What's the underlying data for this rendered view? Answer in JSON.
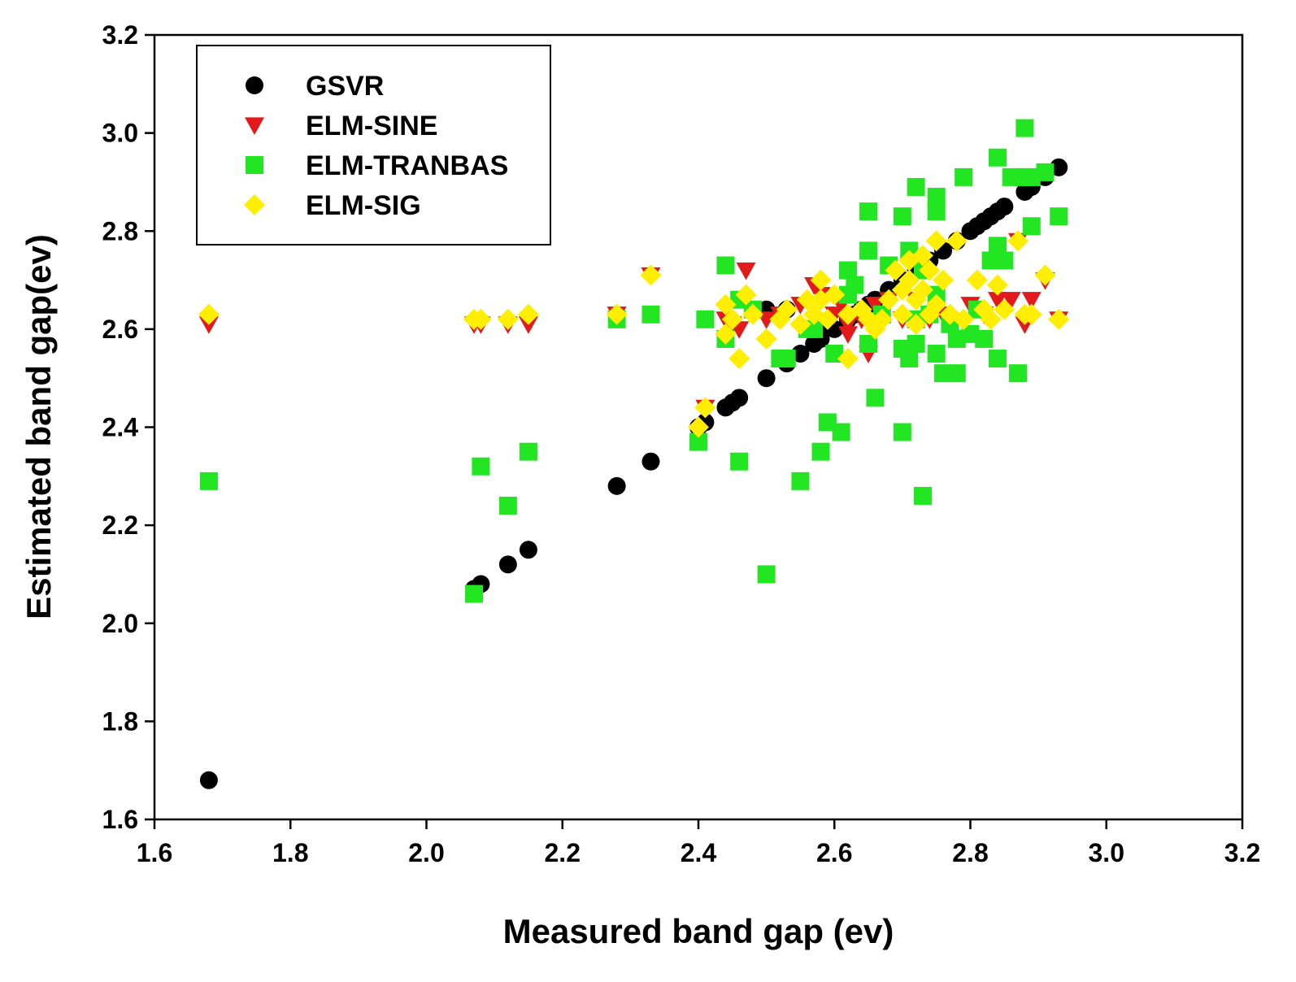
{
  "chart_data": {
    "type": "scatter",
    "title": "",
    "xlabel": "Measured band gap (ev)",
    "ylabel": "Estimated band gap(ev)",
    "xlim": [
      1.6,
      3.2
    ],
    "ylim": [
      1.6,
      3.2
    ],
    "xticks": [
      "1.6",
      "1.8",
      "2.0",
      "2.2",
      "2.4",
      "2.6",
      "2.8",
      "3.0",
      "3.2"
    ],
    "yticks": [
      "1.6",
      "1.8",
      "2.0",
      "2.2",
      "2.4",
      "2.6",
      "2.8",
      "3.0",
      "3.2"
    ],
    "legend_position": "top-left",
    "grid": false,
    "series": [
      {
        "name": "GSVR",
        "marker": "circle",
        "color": "#000000",
        "points": [
          [
            1.68,
            1.68
          ],
          [
            2.07,
            2.07
          ],
          [
            2.08,
            2.08
          ],
          [
            2.12,
            2.12
          ],
          [
            2.15,
            2.15
          ],
          [
            2.28,
            2.28
          ],
          [
            2.33,
            2.33
          ],
          [
            2.4,
            2.4
          ],
          [
            2.41,
            2.41
          ],
          [
            2.44,
            2.44
          ],
          [
            2.45,
            2.45
          ],
          [
            2.46,
            2.46
          ],
          [
            2.5,
            2.5
          ],
          [
            2.53,
            2.53
          ],
          [
            2.55,
            2.55
          ],
          [
            2.57,
            2.57
          ],
          [
            2.58,
            2.58
          ],
          [
            2.6,
            2.6
          ],
          [
            2.62,
            2.62
          ],
          [
            2.63,
            2.63
          ],
          [
            2.64,
            2.64
          ],
          [
            2.65,
            2.65
          ],
          [
            2.66,
            2.66
          ],
          [
            2.68,
            2.68
          ],
          [
            2.7,
            2.7
          ],
          [
            2.72,
            2.72
          ],
          [
            2.74,
            2.74
          ],
          [
            2.76,
            2.76
          ],
          [
            2.78,
            2.78
          ],
          [
            2.8,
            2.8
          ],
          [
            2.81,
            2.81
          ],
          [
            2.82,
            2.82
          ],
          [
            2.83,
            2.83
          ],
          [
            2.84,
            2.84
          ],
          [
            2.85,
            2.85
          ],
          [
            2.88,
            2.88
          ],
          [
            2.89,
            2.89
          ],
          [
            2.91,
            2.91
          ],
          [
            2.93,
            2.93
          ],
          [
            2.5,
            2.64
          ],
          [
            2.53,
            2.64
          ],
          [
            2.58,
            2.6
          ]
        ]
      },
      {
        "name": "ELM-SINE",
        "marker": "triangle-down",
        "color": "#e31a1c",
        "points": [
          [
            1.68,
            2.61
          ],
          [
            2.07,
            2.61
          ],
          [
            2.08,
            2.61
          ],
          [
            2.12,
            2.61
          ],
          [
            2.15,
            2.61
          ],
          [
            2.28,
            2.63
          ],
          [
            2.33,
            2.71
          ],
          [
            2.41,
            2.44
          ],
          [
            2.44,
            2.62
          ],
          [
            2.45,
            2.61
          ],
          [
            2.46,
            2.6
          ],
          [
            2.47,
            2.72
          ],
          [
            2.5,
            2.62
          ],
          [
            2.52,
            2.63
          ],
          [
            2.55,
            2.65
          ],
          [
            2.57,
            2.69
          ],
          [
            2.58,
            2.67
          ],
          [
            2.6,
            2.63
          ],
          [
            2.61,
            2.65
          ],
          [
            2.62,
            2.59
          ],
          [
            2.62,
            2.61
          ],
          [
            2.64,
            2.62
          ],
          [
            2.65,
            2.55
          ],
          [
            2.66,
            2.65
          ],
          [
            2.68,
            2.66
          ],
          [
            2.7,
            2.62
          ],
          [
            2.72,
            2.66
          ],
          [
            2.74,
            2.62
          ],
          [
            2.76,
            2.63
          ],
          [
            2.8,
            2.65
          ],
          [
            2.82,
            2.63
          ],
          [
            2.84,
            2.66
          ],
          [
            2.85,
            2.64
          ],
          [
            2.86,
            2.66
          ],
          [
            2.87,
            2.78
          ],
          [
            2.88,
            2.61
          ],
          [
            2.89,
            2.66
          ],
          [
            2.91,
            2.7
          ],
          [
            2.93,
            2.62
          ]
        ]
      },
      {
        "name": "ELM-TRANBAS",
        "marker": "square",
        "color": "#22e622",
        "points": [
          [
            1.68,
            2.29
          ],
          [
            2.07,
            2.06
          ],
          [
            2.08,
            2.32
          ],
          [
            2.12,
            2.24
          ],
          [
            2.15,
            2.35
          ],
          [
            2.28,
            2.62
          ],
          [
            2.33,
            2.63
          ],
          [
            2.4,
            2.37
          ],
          [
            2.41,
            2.62
          ],
          [
            2.44,
            2.73
          ],
          [
            2.44,
            2.58
          ],
          [
            2.46,
            2.33
          ],
          [
            2.46,
            2.66
          ],
          [
            2.48,
            2.64
          ],
          [
            2.5,
            2.1
          ],
          [
            2.52,
            2.54
          ],
          [
            2.53,
            2.54
          ],
          [
            2.55,
            2.29
          ],
          [
            2.56,
            2.6
          ],
          [
            2.57,
            2.6
          ],
          [
            2.58,
            2.35
          ],
          [
            2.59,
            2.41
          ],
          [
            2.6,
            2.55
          ],
          [
            2.61,
            2.39
          ],
          [
            2.62,
            2.72
          ],
          [
            2.62,
            2.67
          ],
          [
            2.63,
            2.69
          ],
          [
            2.65,
            2.84
          ],
          [
            2.65,
            2.76
          ],
          [
            2.65,
            2.57
          ],
          [
            2.66,
            2.46
          ],
          [
            2.67,
            2.63
          ],
          [
            2.68,
            2.73
          ],
          [
            2.7,
            2.83
          ],
          [
            2.7,
            2.39
          ],
          [
            2.7,
            2.56
          ],
          [
            2.71,
            2.76
          ],
          [
            2.71,
            2.54
          ],
          [
            2.72,
            2.89
          ],
          [
            2.72,
            2.62
          ],
          [
            2.72,
            2.57
          ],
          [
            2.73,
            2.26
          ],
          [
            2.73,
            2.72
          ],
          [
            2.74,
            2.63
          ],
          [
            2.75,
            2.87
          ],
          [
            2.75,
            2.84
          ],
          [
            2.75,
            2.55
          ],
          [
            2.75,
            2.67
          ],
          [
            2.76,
            2.51
          ],
          [
            2.77,
            2.61
          ],
          [
            2.78,
            2.58
          ],
          [
            2.78,
            2.51
          ],
          [
            2.79,
            2.91
          ],
          [
            2.8,
            2.59
          ],
          [
            2.81,
            2.64
          ],
          [
            2.82,
            2.58
          ],
          [
            2.83,
            2.74
          ],
          [
            2.84,
            2.77
          ],
          [
            2.84,
            2.95
          ],
          [
            2.84,
            2.54
          ],
          [
            2.85,
            2.74
          ],
          [
            2.86,
            2.91
          ],
          [
            2.87,
            2.51
          ],
          [
            2.88,
            3.01
          ],
          [
            2.88,
            2.91
          ],
          [
            2.89,
            2.81
          ],
          [
            2.89,
            2.91
          ],
          [
            2.91,
            2.92
          ],
          [
            2.93,
            2.83
          ]
        ]
      },
      {
        "name": "ELM-SIG",
        "marker": "diamond",
        "color": "#ffee00",
        "points": [
          [
            1.68,
            2.63
          ],
          [
            2.07,
            2.62
          ],
          [
            2.08,
            2.62
          ],
          [
            2.12,
            2.62
          ],
          [
            2.15,
            2.63
          ],
          [
            2.28,
            2.63
          ],
          [
            2.33,
            2.71
          ],
          [
            2.4,
            2.4
          ],
          [
            2.41,
            2.44
          ],
          [
            2.44,
            2.59
          ],
          [
            2.44,
            2.65
          ],
          [
            2.45,
            2.62
          ],
          [
            2.46,
            2.54
          ],
          [
            2.47,
            2.67
          ],
          [
            2.48,
            2.63
          ],
          [
            2.5,
            2.58
          ],
          [
            2.52,
            2.62
          ],
          [
            2.53,
            2.64
          ],
          [
            2.55,
            2.61
          ],
          [
            2.56,
            2.66
          ],
          [
            2.57,
            2.63
          ],
          [
            2.58,
            2.7
          ],
          [
            2.58,
            2.66
          ],
          [
            2.59,
            2.62
          ],
          [
            2.6,
            2.67
          ],
          [
            2.62,
            2.63
          ],
          [
            2.62,
            2.54
          ],
          [
            2.64,
            2.64
          ],
          [
            2.65,
            2.62
          ],
          [
            2.66,
            2.6
          ],
          [
            2.67,
            2.62
          ],
          [
            2.68,
            2.66
          ],
          [
            2.69,
            2.72
          ],
          [
            2.7,
            2.63
          ],
          [
            2.7,
            2.68
          ],
          [
            2.71,
            2.74
          ],
          [
            2.71,
            2.7
          ],
          [
            2.72,
            2.61
          ],
          [
            2.72,
            2.66
          ],
          [
            2.73,
            2.75
          ],
          [
            2.73,
            2.68
          ],
          [
            2.74,
            2.72
          ],
          [
            2.74,
            2.63
          ],
          [
            2.75,
            2.78
          ],
          [
            2.75,
            2.65
          ],
          [
            2.76,
            2.7
          ],
          [
            2.77,
            2.63
          ],
          [
            2.78,
            2.78
          ],
          [
            2.79,
            2.62
          ],
          [
            2.81,
            2.7
          ],
          [
            2.82,
            2.64
          ],
          [
            2.83,
            2.62
          ],
          [
            2.84,
            2.69
          ],
          [
            2.85,
            2.64
          ],
          [
            2.87,
            2.78
          ],
          [
            2.88,
            2.63
          ],
          [
            2.89,
            2.63
          ],
          [
            2.91,
            2.71
          ],
          [
            2.93,
            2.62
          ]
        ]
      }
    ]
  }
}
